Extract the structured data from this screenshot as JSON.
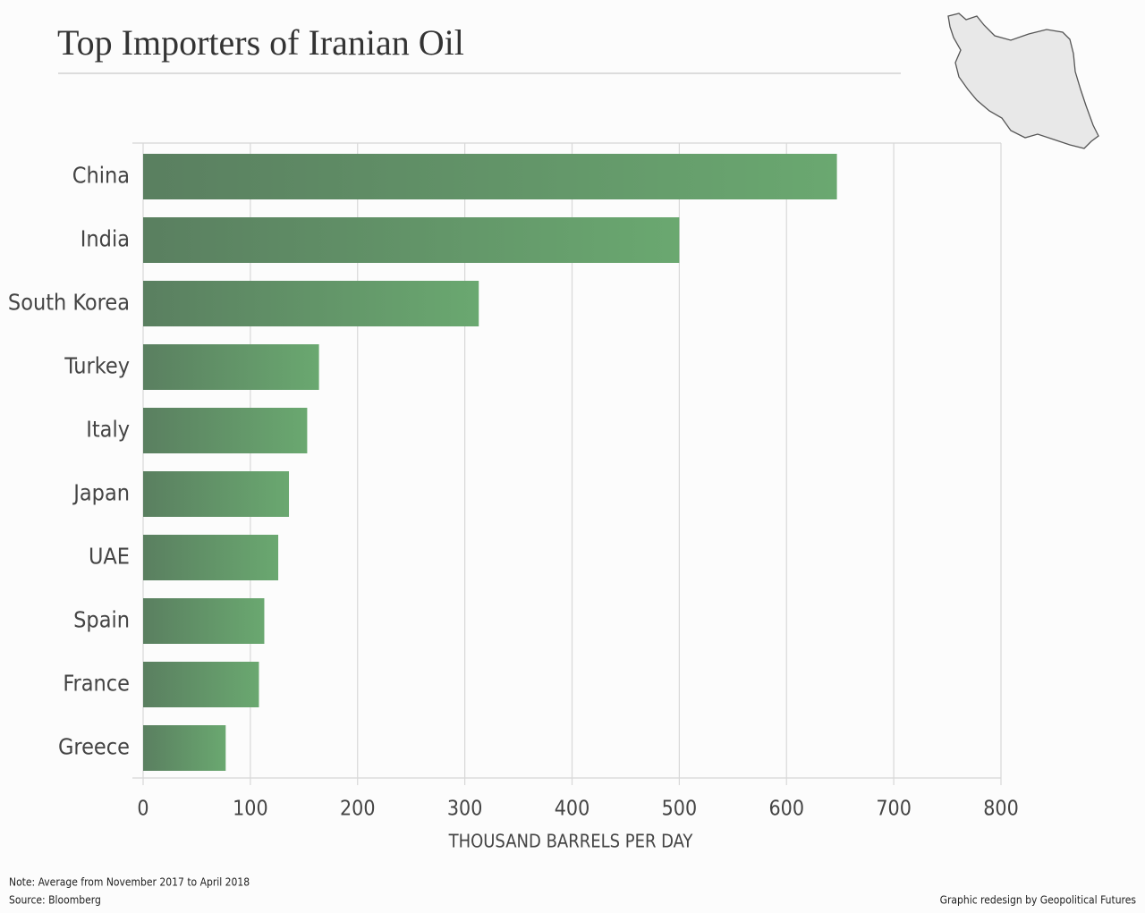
{
  "chart_data": {
    "type": "bar",
    "orientation": "horizontal",
    "title": "Top Importers of Iranian Oil",
    "categories": [
      "China",
      "India",
      "South Korea",
      "Turkey",
      "Italy",
      "Japan",
      "UAE",
      "Spain",
      "France",
      "Greece"
    ],
    "values": [
      647,
      500,
      313,
      164,
      153,
      136,
      126,
      113,
      108,
      77
    ],
    "color": "#6aa870",
    "xlabel": "THOUSAND BARRELS PER DAY",
    "xlim": [
      0,
      800
    ],
    "xticks": [
      0,
      100,
      200,
      300,
      400,
      500,
      600,
      700,
      800
    ],
    "grid": true,
    "note": "Note: Average from November 2017 to April 2018",
    "source": "Source: Bloomberg",
    "credit": "Graphic redesign by Geopolitical Futures"
  }
}
